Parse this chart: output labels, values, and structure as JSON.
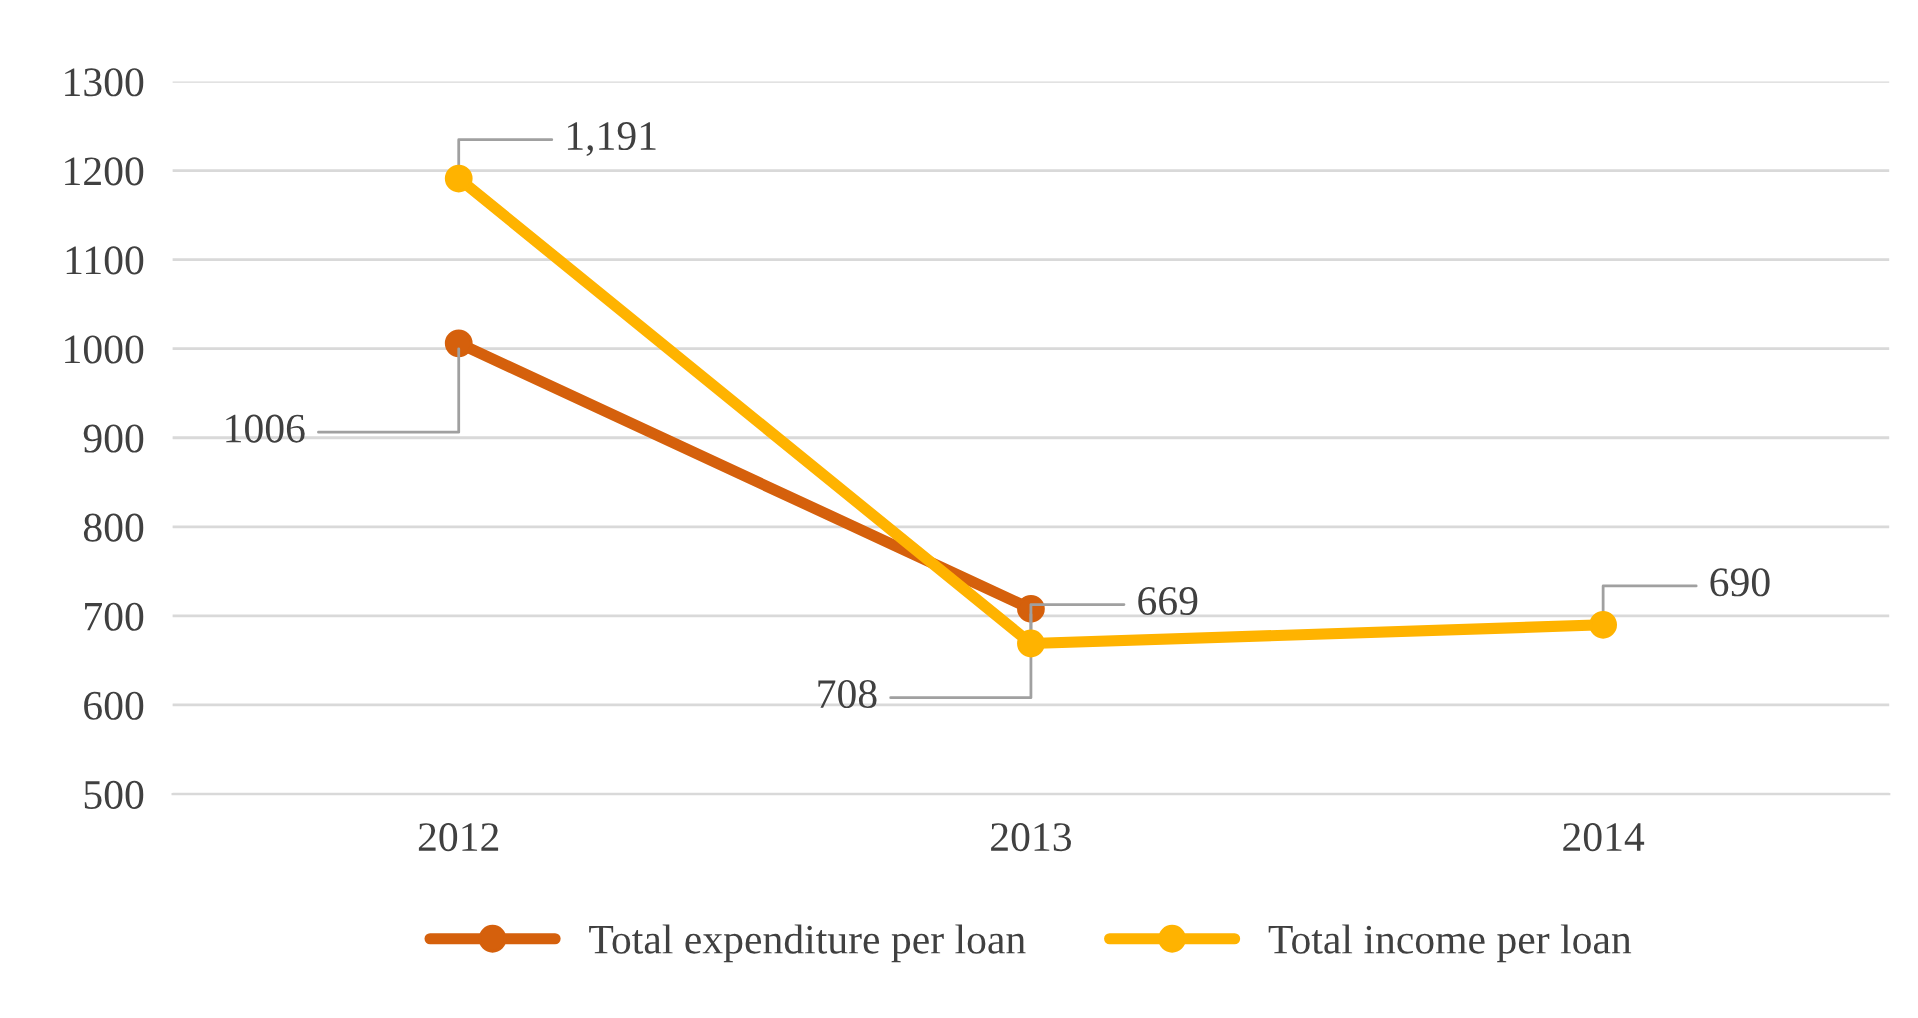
{
  "chart_data": {
    "type": "line",
    "categories": [
      "2012",
      "2013",
      "2014"
    ],
    "series": [
      {
        "name": "Total expenditure per loan",
        "color": "#d5600c",
        "values": [
          1006,
          708,
          null
        ],
        "value_labels": [
          "1006",
          "708",
          null
        ]
      },
      {
        "name": "Total income per loan",
        "color": "#ffb300",
        "values": [
          1191,
          669,
          690
        ],
        "value_labels": [
          "1,191",
          "669",
          "690"
        ]
      }
    ],
    "ylim": [
      500,
      1300
    ],
    "yticks": [
      500,
      600,
      700,
      800,
      900,
      1000,
      1100,
      1200,
      1300
    ],
    "grid": "y",
    "legend": "bottom",
    "marker": "circle",
    "line_style": "solid"
  }
}
